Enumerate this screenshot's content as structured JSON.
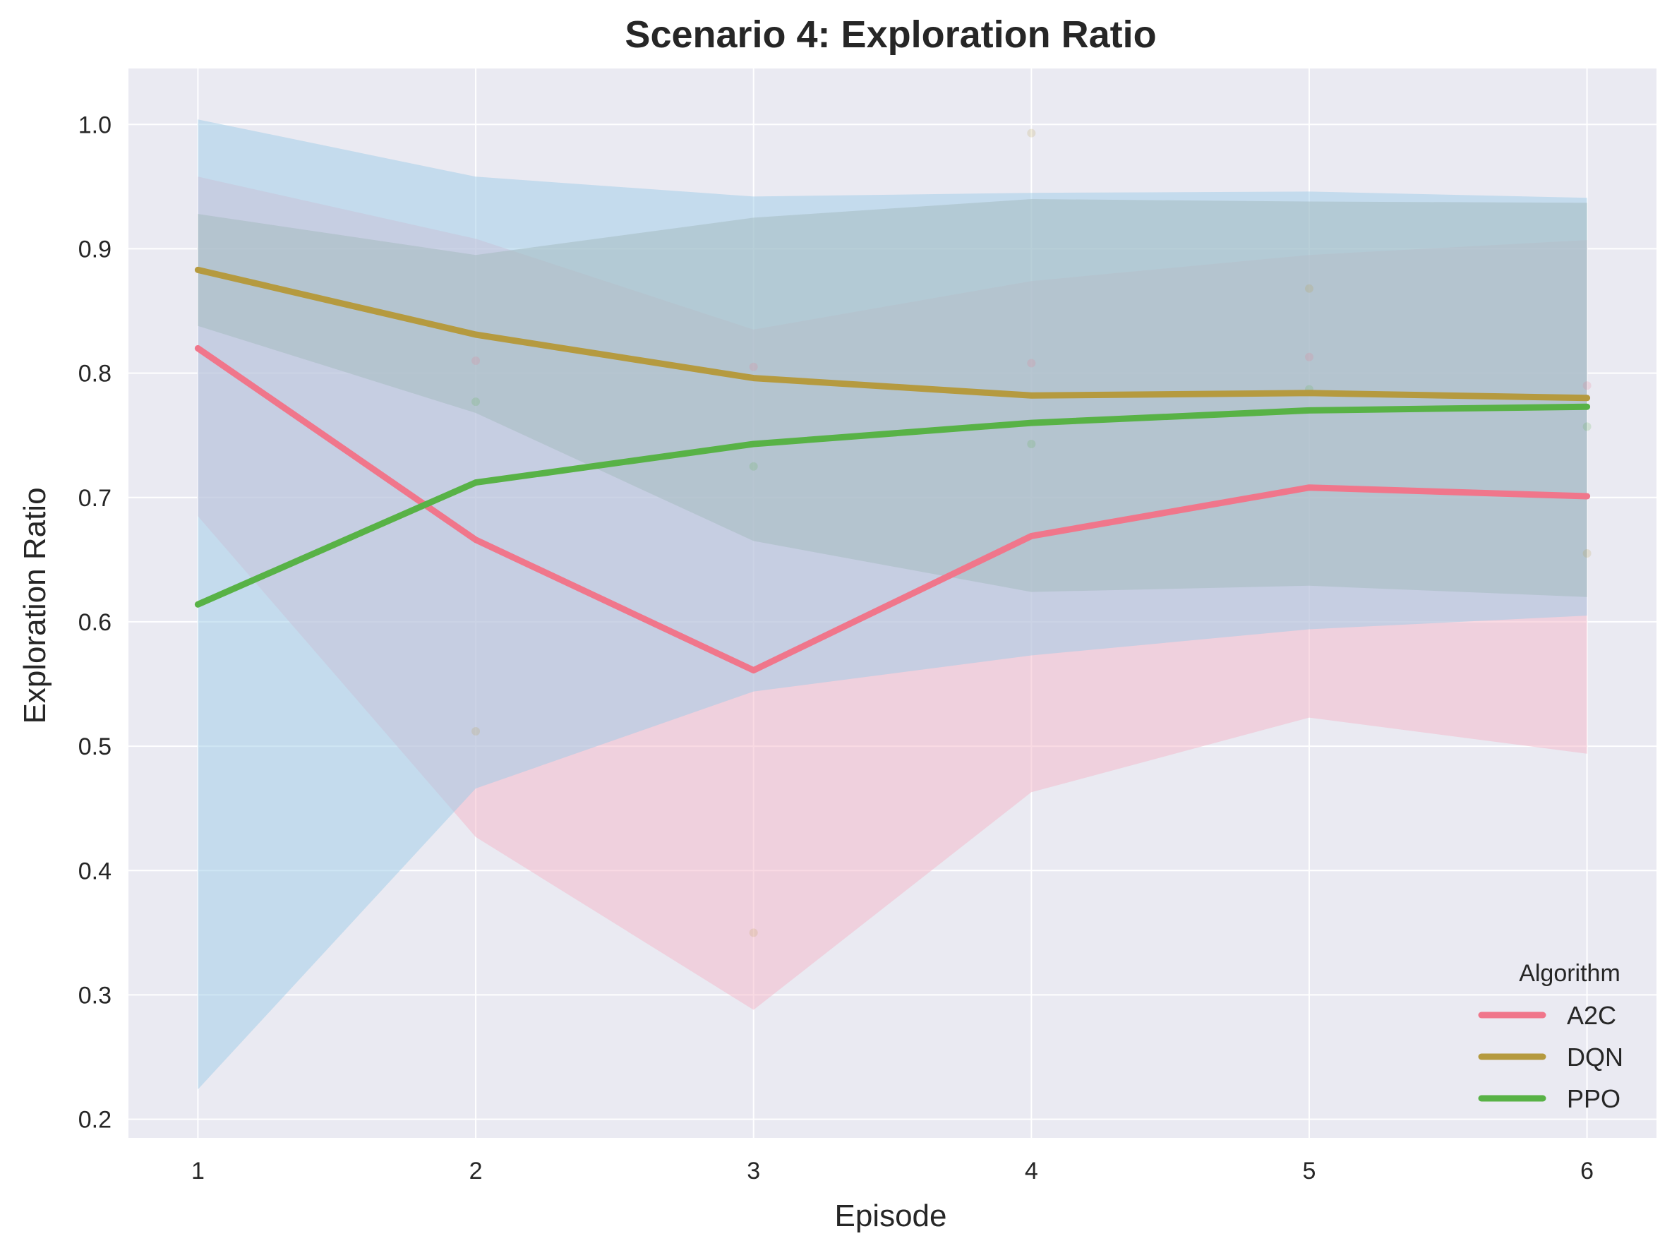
{
  "chart_data": {
    "type": "line",
    "title": "Scenario 4: Exploration Ratio",
    "xlabel": "Episode",
    "ylabel": "Exploration Ratio",
    "x": [
      1,
      2,
      3,
      4,
      5,
      6
    ],
    "xticks": [
      "1",
      "2",
      "3",
      "4",
      "5",
      "6"
    ],
    "yticks": [
      "0.2",
      "0.3",
      "0.4",
      "0.5",
      "0.6",
      "0.7",
      "0.8",
      "0.9",
      "1.0"
    ],
    "xlim": [
      0.75,
      6.25
    ],
    "ylim": [
      0.185,
      1.045
    ],
    "grid": true,
    "legend_title": "Algorithm",
    "legend_position": "lower-right",
    "series": [
      {
        "name": "A2C",
        "color": "#f0768b",
        "band_color": "#f3b6c8",
        "values": [
          0.82,
          0.666,
          0.561,
          0.669,
          0.708,
          0.701
        ],
        "band_lower": [
          0.685,
          0.427,
          0.288,
          0.463,
          0.523,
          0.494
        ],
        "band_upper": [
          0.958,
          0.908,
          0.835,
          0.874,
          0.895,
          0.907
        ],
        "points": [
          [
            2,
            0.81
          ],
          [
            3,
            0.805
          ],
          [
            4,
            0.808
          ],
          [
            5,
            0.813
          ],
          [
            6,
            0.79
          ]
        ]
      },
      {
        "name": "DQN",
        "color": "#b59a3f",
        "band_color": "#a8a892",
        "values": [
          0.883,
          0.831,
          0.796,
          0.782,
          0.784,
          0.78
        ],
        "band_lower": [
          0.838,
          0.768,
          0.665,
          0.624,
          0.629,
          0.62
        ],
        "band_upper": [
          0.928,
          0.895,
          0.925,
          0.94,
          0.938,
          0.937
        ],
        "points": [
          [
            2,
            0.512
          ],
          [
            3,
            0.35
          ],
          [
            4,
            0.993
          ],
          [
            5,
            0.868
          ],
          [
            6,
            0.655
          ]
        ]
      },
      {
        "name": "PPO",
        "color": "#58b246",
        "band_color": "#9ecbe8",
        "values": [
          0.614,
          0.712,
          0.743,
          0.76,
          0.77,
          0.773
        ],
        "band_lower": [
          0.224,
          0.466,
          0.544,
          0.573,
          0.594,
          0.605
        ],
        "band_upper": [
          1.004,
          0.958,
          0.942,
          0.945,
          0.946,
          0.941
        ],
        "points": [
          [
            2,
            0.777
          ],
          [
            3,
            0.725
          ],
          [
            4,
            0.743
          ],
          [
            5,
            0.787
          ],
          [
            6,
            0.757
          ]
        ]
      }
    ]
  }
}
